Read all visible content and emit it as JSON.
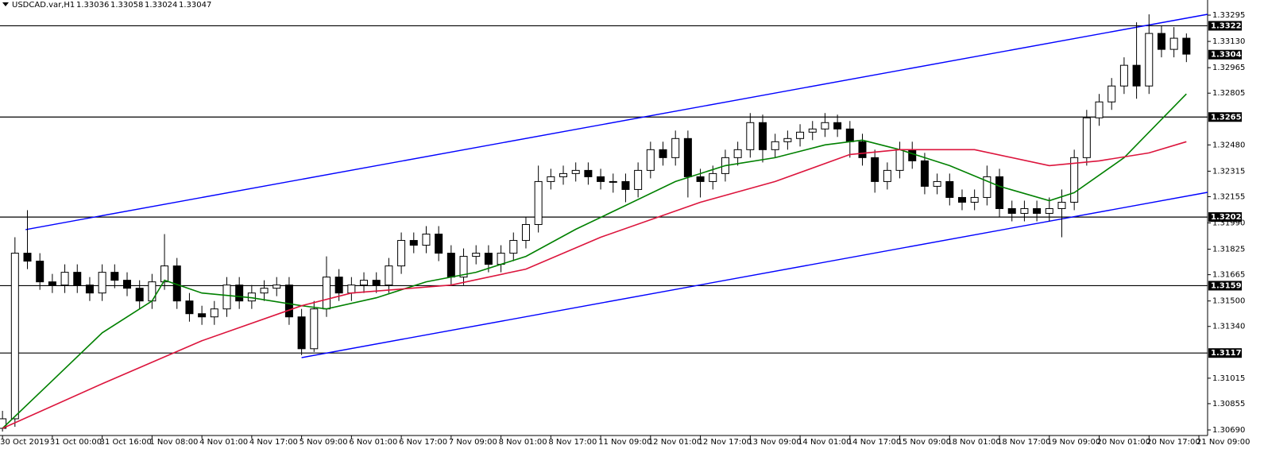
{
  "chart_data": {
    "type": "candlestick",
    "title": "USDCAD.var,H1",
    "header_ohlc": [
      1.33036,
      1.33058,
      1.33024,
      1.33047
    ],
    "up_color": "#ffffff",
    "down_color": "#000000",
    "ylim": [
      1.30655,
      1.3339
    ],
    "xlim": [
      -0.2,
      96.7
    ],
    "yticks": [
      1.33295,
      {
        "value": 1.3313,
        "label": "1.33130"
      },
      1.32965,
      1.32805,
      {
        "value": 1.3248,
        "label": "1.32480"
      },
      1.32315,
      1.32155,
      {
        "value": 1.3199,
        "label": "1.31990"
      },
      1.31825,
      1.31665,
      {
        "value": 1.315,
        "label": "1.31500"
      },
      {
        "value": 1.3134,
        "label": "1.31340"
      },
      1.31015,
      1.30855,
      {
        "value": 1.3069,
        "label": "1.30690"
      }
    ],
    "xticks": [
      {
        "value": 0,
        "label": "30 Oct 2019"
      },
      {
        "value": 4,
        "label": "31 Oct 00:00"
      },
      {
        "value": 8,
        "label": "31 Oct 16:00"
      },
      {
        "value": 12,
        "label": "1 Nov 08:00"
      },
      {
        "value": 16,
        "label": "4 Nov 01:00"
      },
      {
        "value": 20,
        "label": "4 Nov 17:00"
      },
      {
        "value": 24,
        "label": "5 Nov 09:00"
      },
      {
        "value": 28,
        "label": "6 Nov 01:00"
      },
      {
        "value": 32,
        "label": "6 Nov 17:00"
      },
      {
        "value": 36,
        "label": "7 Nov 09:00"
      },
      {
        "value": 40,
        "label": "8 Nov 01:00"
      },
      {
        "value": 44,
        "label": "8 Nov 17:00"
      },
      {
        "value": 48,
        "label": "11 Nov 09:00"
      },
      {
        "value": 52,
        "label": "12 Nov 01:00"
      },
      {
        "value": 56,
        "label": "12 Nov 17:00"
      },
      {
        "value": 60,
        "label": "13 Nov 09:00"
      },
      {
        "value": 64,
        "label": "14 Nov 01:00"
      },
      {
        "value": 68,
        "label": "14 Nov 17:00"
      },
      {
        "value": 72,
        "label": "15 Nov 09:00"
      },
      {
        "value": 76,
        "label": "18 Nov 01:00"
      },
      {
        "value": 80,
        "label": "18 Nov 17:00"
      },
      {
        "value": 84,
        "label": "19 Nov 09:00"
      },
      {
        "value": 88,
        "label": "20 Nov 01:00"
      },
      {
        "value": 92,
        "label": "20 Nov 17:00"
      },
      {
        "value": 96,
        "label": "21 Nov 09:00"
      }
    ],
    "open": [
      1.307,
      1.3076,
      1.318,
      1.3175,
      1.3162,
      1.316,
      1.3168,
      1.316,
      1.3155,
      1.3168,
      1.3163,
      1.3158,
      1.315,
      1.3162,
      1.3172,
      1.315,
      1.3142,
      1.314,
      1.3145,
      1.316,
      1.315,
      1.3155,
      1.3158,
      1.316,
      1.314,
      1.312,
      1.3145,
      1.3165,
      1.3155,
      1.316,
      1.3163,
      1.316,
      1.3172,
      1.3188,
      1.3185,
      1.3192,
      1.318,
      1.3165,
      1.3178,
      1.318,
      1.3173,
      1.318,
      1.3188,
      1.3198,
      1.3225,
      1.3228,
      1.323,
      1.3232,
      1.3228,
      1.3225,
      1.3225,
      1.322,
      1.3232,
      1.3245,
      1.324,
      1.3252,
      1.3228,
      1.3225,
      1.323,
      1.324,
      1.3245,
      1.3262,
      1.3245,
      1.325,
      1.3252,
      1.3256,
      1.3258,
      1.3262,
      1.3258,
      1.325,
      1.324,
      1.3225,
      1.3232,
      1.3245,
      1.3238,
      1.3222,
      1.3225,
      1.3215,
      1.3212,
      1.3215,
      1.3228,
      1.3208,
      1.3205,
      1.3208,
      1.3205,
      1.3208,
      1.3212,
      1.324,
      1.3265,
      1.3275,
      1.3285,
      1.3298,
      1.3285,
      1.3318,
      1.3308,
      1.3315
    ],
    "high": [
      1.3081,
      1.319,
      1.3207,
      1.318,
      1.3167,
      1.3173,
      1.3173,
      1.3165,
      1.3173,
      1.3173,
      1.3168,
      1.3163,
      1.3167,
      1.3192,
      1.3177,
      1.3155,
      1.3147,
      1.315,
      1.3165,
      1.3165,
      1.316,
      1.3163,
      1.3165,
      1.3165,
      1.3145,
      1.315,
      1.3178,
      1.317,
      1.3165,
      1.3168,
      1.3168,
      1.3177,
      1.3193,
      1.3193,
      1.3197,
      1.3197,
      1.3185,
      1.3183,
      1.3185,
      1.3185,
      1.3185,
      1.3193,
      1.3203,
      1.3235,
      1.3233,
      1.3235,
      1.3237,
      1.3237,
      1.3233,
      1.323,
      1.323,
      1.3237,
      1.325,
      1.325,
      1.3257,
      1.3257,
      1.3233,
      1.3235,
      1.3245,
      1.325,
      1.3268,
      1.3267,
      1.3255,
      1.3257,
      1.3261,
      1.3263,
      1.3268,
      1.3267,
      1.3263,
      1.3255,
      1.3245,
      1.3237,
      1.325,
      1.325,
      1.3243,
      1.323,
      1.323,
      1.322,
      1.322,
      1.3235,
      1.3233,
      1.3213,
      1.3213,
      1.3213,
      1.3215,
      1.322,
      1.3245,
      1.327,
      1.328,
      1.329,
      1.3303,
      1.3325,
      1.333,
      1.3323,
      1.3322,
      1.3318
    ],
    "low": [
      1.3068,
      1.3071,
      1.317,
      1.3157,
      1.3155,
      1.3155,
      1.3155,
      1.315,
      1.315,
      1.3158,
      1.3153,
      1.3145,
      1.3145,
      1.3157,
      1.3145,
      1.3137,
      1.3135,
      1.3135,
      1.314,
      1.3145,
      1.3145,
      1.315,
      1.3153,
      1.3135,
      1.3116,
      1.3118,
      1.314,
      1.315,
      1.315,
      1.3155,
      1.3155,
      1.3155,
      1.3167,
      1.318,
      1.318,
      1.3175,
      1.316,
      1.316,
      1.3173,
      1.3168,
      1.3168,
      1.3175,
      1.3183,
      1.3193,
      1.322,
      1.3223,
      1.3225,
      1.3223,
      1.322,
      1.3218,
      1.3212,
      1.3215,
      1.3227,
      1.3235,
      1.3235,
      1.3215,
      1.3215,
      1.322,
      1.3225,
      1.3235,
      1.324,
      1.3237,
      1.324,
      1.3245,
      1.3247,
      1.3251,
      1.3253,
      1.3253,
      1.324,
      1.3235,
      1.3218,
      1.322,
      1.3227,
      1.3233,
      1.3217,
      1.3217,
      1.321,
      1.3207,
      1.3207,
      1.321,
      1.3203,
      1.32,
      1.32,
      1.32,
      1.32,
      1.319,
      1.3207,
      1.3235,
      1.326,
      1.327,
      1.328,
      1.3277,
      1.328,
      1.3303,
      1.3303,
      1.33
    ],
    "close": [
      1.3076,
      1.318,
      1.3175,
      1.3162,
      1.316,
      1.3168,
      1.316,
      1.3155,
      1.3168,
      1.3163,
      1.3158,
      1.315,
      1.3162,
      1.3172,
      1.315,
      1.3142,
      1.314,
      1.3145,
      1.316,
      1.315,
      1.3155,
      1.3158,
      1.316,
      1.314,
      1.312,
      1.3145,
      1.3165,
      1.3155,
      1.316,
      1.3163,
      1.316,
      1.3172,
      1.3188,
      1.3185,
      1.3192,
      1.318,
      1.3165,
      1.3178,
      1.318,
      1.3173,
      1.318,
      1.3188,
      1.3198,
      1.3225,
      1.3228,
      1.323,
      1.3232,
      1.3228,
      1.3225,
      1.3225,
      1.322,
      1.3232,
      1.3245,
      1.324,
      1.3252,
      1.3228,
      1.3225,
      1.323,
      1.324,
      1.3245,
      1.3262,
      1.3245,
      1.325,
      1.3252,
      1.3256,
      1.3258,
      1.3262,
      1.3258,
      1.325,
      1.324,
      1.3225,
      1.3232,
      1.3245,
      1.3238,
      1.3222,
      1.3225,
      1.3215,
      1.3212,
      1.3215,
      1.3228,
      1.3208,
      1.3205,
      1.3208,
      1.3205,
      1.3208,
      1.3212,
      1.324,
      1.3265,
      1.3275,
      1.3285,
      1.3298,
      1.3285,
      1.3318,
      1.3308,
      1.3315,
      1.3305
    ],
    "series": [
      {
        "color": "#008000",
        "x": [
          0,
          4,
          8,
          12,
          13,
          16,
          20,
          24,
          26,
          30,
          34,
          38,
          42,
          46,
          50,
          54,
          58,
          62,
          66,
          69,
          72,
          76,
          80,
          84,
          86,
          90,
          95
        ],
        "values": [
          1.307,
          1.31,
          1.313,
          1.315,
          1.3163,
          1.3155,
          1.3152,
          1.3147,
          1.3145,
          1.3152,
          1.3162,
          1.3168,
          1.3178,
          1.3195,
          1.321,
          1.3225,
          1.3235,
          1.324,
          1.3248,
          1.3251,
          1.3245,
          1.3235,
          1.3222,
          1.3213,
          1.3218,
          1.324,
          1.328
        ]
      },
      {
        "color": "#dc143c",
        "x": [
          0,
          8,
          16,
          24,
          28,
          36,
          42,
          48,
          56,
          62,
          68,
          72,
          78,
          84,
          88,
          92,
          95
        ],
        "values": [
          1.307,
          1.3098,
          1.3125,
          1.3147,
          1.3155,
          1.316,
          1.317,
          1.319,
          1.3212,
          1.3225,
          1.3242,
          1.3245,
          1.3245,
          1.3235,
          1.3238,
          1.3243,
          1.325
        ]
      }
    ],
    "trendlines": [
      {
        "color": "#0000ff",
        "x": [
          1.85,
          96.7
        ],
        "values": [
          1.31948,
          1.333
        ]
      },
      {
        "color": "#0000ff",
        "x": [
          24.0,
          96.7
        ],
        "values": [
          1.31144,
          1.32182
        ]
      }
    ],
    "levels": [
      1.33228,
      1.32655,
      1.32027,
      1.31596,
      1.31173
    ],
    "last_price": 1.33047
  }
}
